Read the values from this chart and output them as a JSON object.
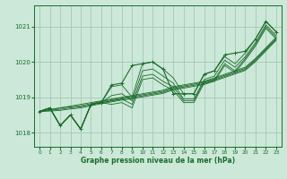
{
  "background_color": "#cce8d8",
  "grid_color": "#aaccbb",
  "line_color": "#1a6b2a",
  "title": "Graphe pression niveau de la mer (hPa)",
  "xlim": [
    -0.5,
    23.5
  ],
  "ylim": [
    1017.6,
    1021.6
  ],
  "yticks": [
    1018,
    1019,
    1020,
    1021
  ],
  "xticks": [
    0,
    1,
    2,
    3,
    4,
    5,
    6,
    7,
    8,
    9,
    10,
    11,
    12,
    13,
    14,
    15,
    16,
    17,
    18,
    19,
    20,
    21,
    22,
    23
  ],
  "series": [
    [
      1018.6,
      1018.7,
      1018.2,
      1018.5,
      1018.1,
      1018.8,
      1018.85,
      1019.3,
      1019.35,
      1019.0,
      1019.95,
      1020.0,
      1019.8,
      1019.55,
      1019.1,
      1019.1,
      1019.65,
      1019.75,
      1020.15,
      1019.95,
      1020.25,
      1020.65,
      1021.15,
      1020.85
    ],
    [
      1018.6,
      1018.7,
      1018.2,
      1018.5,
      1018.1,
      1018.8,
      1018.85,
      1019.05,
      1019.1,
      1018.9,
      1019.75,
      1019.8,
      1019.6,
      1019.4,
      1018.95,
      1018.95,
      1019.5,
      1019.6,
      1020.05,
      1019.85,
      1020.15,
      1020.55,
      1021.05,
      1020.75
    ],
    [
      1018.6,
      1018.7,
      1018.2,
      1018.5,
      1018.1,
      1018.8,
      1018.85,
      1018.9,
      1018.95,
      1018.8,
      1019.6,
      1019.65,
      1019.45,
      1019.3,
      1018.9,
      1018.9,
      1019.45,
      1019.5,
      1019.95,
      1019.75,
      1020.1,
      1020.5,
      1021.0,
      1020.7
    ],
    [
      1018.6,
      1018.7,
      1018.2,
      1018.5,
      1018.1,
      1018.8,
      1018.85,
      1018.8,
      1018.85,
      1018.7,
      1019.5,
      1019.55,
      1019.35,
      1019.2,
      1018.85,
      1018.85,
      1019.4,
      1019.45,
      1019.9,
      1019.7,
      1020.05,
      1020.45,
      1020.95,
      1020.65
    ]
  ],
  "main_series": [
    1018.6,
    1018.7,
    1018.2,
    1018.5,
    1018.1,
    1018.8,
    1018.85,
    1019.35,
    1019.4,
    1019.9,
    1019.95,
    1020.0,
    1019.8,
    1019.1,
    1019.1,
    1019.1,
    1019.65,
    1019.75,
    1020.2,
    1020.25,
    1020.3,
    1020.65,
    1021.15,
    1020.85
  ],
  "linear_series": [
    [
      1018.6,
      1018.65,
      1018.7,
      1018.75,
      1018.8,
      1018.85,
      1018.9,
      1018.95,
      1019.0,
      1019.05,
      1019.1,
      1019.15,
      1019.2,
      1019.3,
      1019.35,
      1019.4,
      1019.45,
      1019.55,
      1019.65,
      1019.75,
      1019.85,
      1020.1,
      1020.4,
      1020.7
    ],
    [
      1018.6,
      1018.65,
      1018.7,
      1018.73,
      1018.76,
      1018.82,
      1018.88,
      1018.93,
      1018.98,
      1019.02,
      1019.07,
      1019.12,
      1019.17,
      1019.27,
      1019.32,
      1019.37,
      1019.42,
      1019.52,
      1019.62,
      1019.72,
      1019.82,
      1020.07,
      1020.37,
      1020.67
    ],
    [
      1018.6,
      1018.63,
      1018.66,
      1018.7,
      1018.73,
      1018.79,
      1018.85,
      1018.9,
      1018.95,
      1018.99,
      1019.04,
      1019.09,
      1019.14,
      1019.24,
      1019.29,
      1019.34,
      1019.39,
      1019.49,
      1019.59,
      1019.69,
      1019.79,
      1020.04,
      1020.34,
      1020.64
    ],
    [
      1018.6,
      1018.61,
      1018.63,
      1018.67,
      1018.7,
      1018.76,
      1018.82,
      1018.87,
      1018.92,
      1018.96,
      1019.01,
      1019.06,
      1019.11,
      1019.21,
      1019.26,
      1019.31,
      1019.36,
      1019.46,
      1019.56,
      1019.66,
      1019.76,
      1020.01,
      1020.31,
      1020.61
    ]
  ]
}
